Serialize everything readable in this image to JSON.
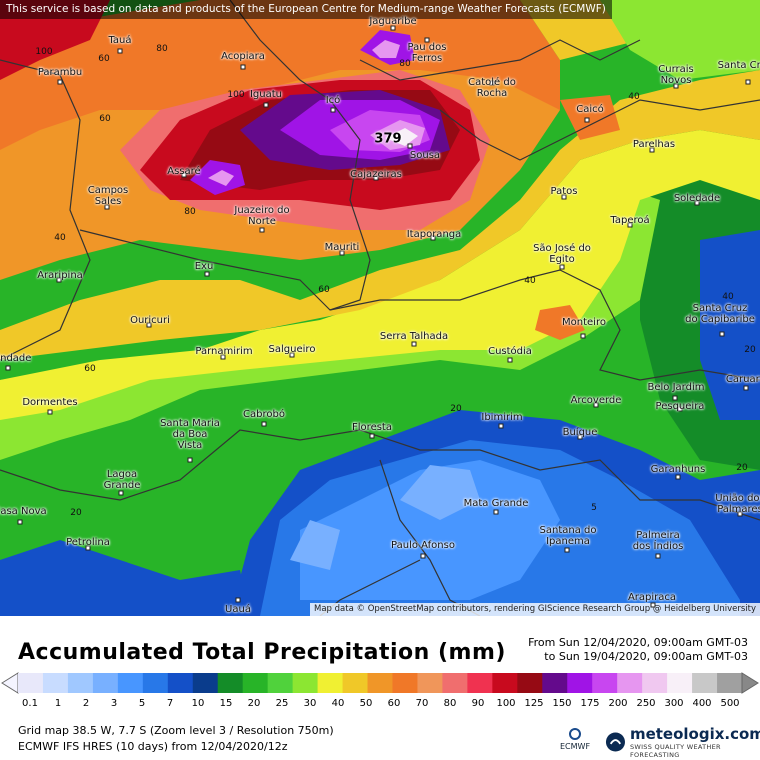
{
  "notice": "This service is based on data and products of the European Centre for Medium-range Weather Forecasts (ECMWF)",
  "attribution": "Map data © OpenStreetMap contributors, rendering GIScience Research Group @ Heidelberg University",
  "max_value_label": "379",
  "cities": [
    "Tauá",
    "Jaguaribe",
    "Pau dos Ferros",
    "Parambu",
    "Acopiara",
    "Iguatu",
    "Icó",
    "Catolé do Rocha",
    "Currais Novos",
    "Santa Cruz",
    "Caicó",
    "Sousa",
    "Parelhas",
    "Assaré",
    "Cajazeiras",
    "Campos Sales",
    "Juazeiro do Norte",
    "Patos",
    "Soledade",
    "Taperoá",
    "Itaporanga",
    "Mauriti",
    "São José do Egito",
    "Araripina",
    "Exu",
    "Santa Cruz do Capibaribe",
    "Ouricuri",
    "Monteiro",
    "Serra Talhada",
    "Parnamirim",
    "Salgueiro",
    "Custódia",
    "Belo Jardim",
    "Trindade",
    "Dormentes",
    "Arcoverde",
    "Pesqueira",
    "Cabrobó",
    "Ibimirim",
    "Caruaru",
    "Santa Maria da Boa Vista",
    "Floresta",
    "Buíque",
    "Garanhuns",
    "Lagoa Grande",
    "União dos Palmares",
    "Mata Grande",
    "Casa Nova",
    "Santana do Ipanema",
    "Petrolina",
    "Paulo Afonso",
    "Palmeira dos Índios",
    "Arapiraca",
    "Uauá"
  ],
  "contour_labels": [
    "100",
    "80",
    "60",
    "60",
    "100",
    "80",
    "80",
    "40",
    "40",
    "60",
    "40",
    "40",
    "60",
    "20",
    "20",
    "20",
    "20",
    "5"
  ],
  "legend": {
    "title": "Accumulated Total Precipitation (mm)",
    "from": "From Sun 12/04/2020, 09:00am GMT-03",
    "to": "to Sun 19/04/2020, 09:00am GMT-03",
    "ticks": [
      "0.1",
      "1",
      "2",
      "3",
      "5",
      "7",
      "10",
      "15",
      "20",
      "25",
      "30",
      "40",
      "50",
      "60",
      "70",
      "80",
      "90",
      "100",
      "125",
      "150",
      "175",
      "200",
      "250",
      "300",
      "400",
      "500"
    ],
    "colors": [
      "#e8e8fa",
      "#c8dcff",
      "#a0c8ff",
      "#78b0ff",
      "#4896ff",
      "#2878e8",
      "#1450c8",
      "#0a3c8c",
      "#148c28",
      "#28b428",
      "#50d23c",
      "#8ce632",
      "#f0f032",
      "#f0c828",
      "#f09628",
      "#f07828",
      "#f0965a",
      "#f06e6e",
      "#f03250",
      "#c80a1e",
      "#960a14",
      "#640a8c",
      "#a014e6",
      "#c846f0",
      "#e696f0",
      "#f0c8f0",
      "#f8f0f8",
      "#c8c8c8",
      "#a0a0a0"
    ],
    "grid": "Grid map 38.5 W, 7.7 S (Zoom level 3 / Resolution 750m)",
    "model": "ECMWF IFS HRES (10 days) from 12/04/2020/12z",
    "ecmwf_label": "ECMWF",
    "brand": "meteologix.com",
    "brand_sub": "SWISS QUALITY WEATHER FORECASTING"
  }
}
